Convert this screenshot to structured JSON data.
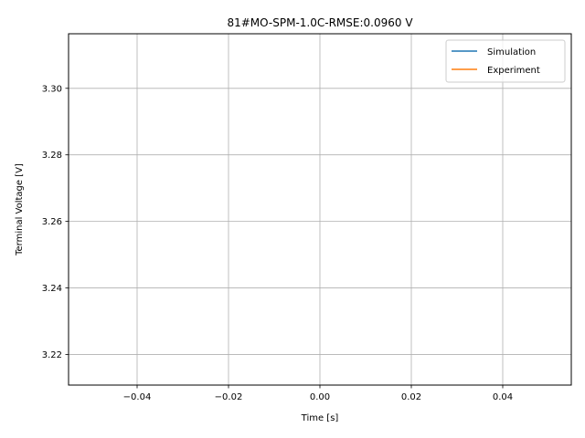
{
  "chart_data": {
    "type": "line",
    "title": "81#MO-SPM-1.0C-RMSE:0.0960 V",
    "xlabel": "Time [s]",
    "ylabel": "Terminal Voltage [V]",
    "xlim": [
      -0.055,
      0.055
    ],
    "ylim": [
      3.2108,
      3.3164
    ],
    "xticks": [
      -0.04,
      -0.02,
      0.0,
      0.02,
      0.04
    ],
    "xtick_labels": [
      "−0.04",
      "−0.02",
      "0.00",
      "0.02",
      "0.04"
    ],
    "yticks": [
      3.22,
      3.24,
      3.26,
      3.28,
      3.3
    ],
    "ytick_labels": [
      "3.22",
      "3.24",
      "3.26",
      "3.28",
      "3.30"
    ],
    "grid": true,
    "legend_position": "top-right",
    "series": [
      {
        "name": "Simulation",
        "color": "#1f77b4",
        "x": [],
        "y": []
      },
      {
        "name": "Experiment",
        "color": "#ff7f0e",
        "x": [],
        "y": []
      }
    ]
  }
}
